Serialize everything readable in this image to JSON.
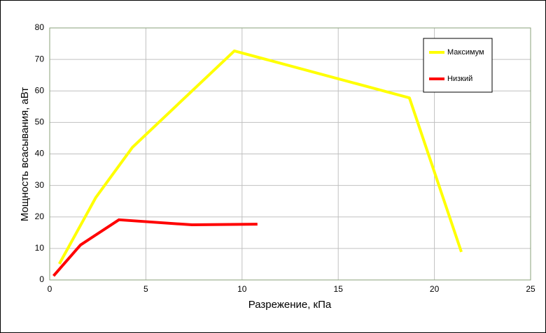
{
  "chart_data": {
    "type": "line",
    "x_label": "Разрежение, кПа",
    "y_label": "Мощность всасывания, аВт",
    "xlim": [
      0,
      25
    ],
    "xticks": [
      0,
      5,
      10,
      15,
      20,
      25
    ],
    "ylim": [
      0,
      80
    ],
    "yticks": [
      0,
      10,
      20,
      30,
      40,
      50,
      60,
      70,
      80
    ],
    "grid": true,
    "legend": "upper right",
    "series": [
      {
        "name": "Максимум",
        "color": "#ffff00",
        "x": [
          0.5,
          2.4,
          4.3,
          9.6,
          18.7,
          21.4
        ],
        "values": [
          5.1,
          26.2,
          42.1,
          72.7,
          57.8,
          8.9
        ]
      },
      {
        "name": "Низкий",
        "color": "#ff0000",
        "x": [
          0.2,
          1.6,
          3.6,
          7.4,
          10.8
        ],
        "values": [
          1.3,
          11.1,
          19.1,
          17.5,
          17.7
        ]
      }
    ]
  }
}
